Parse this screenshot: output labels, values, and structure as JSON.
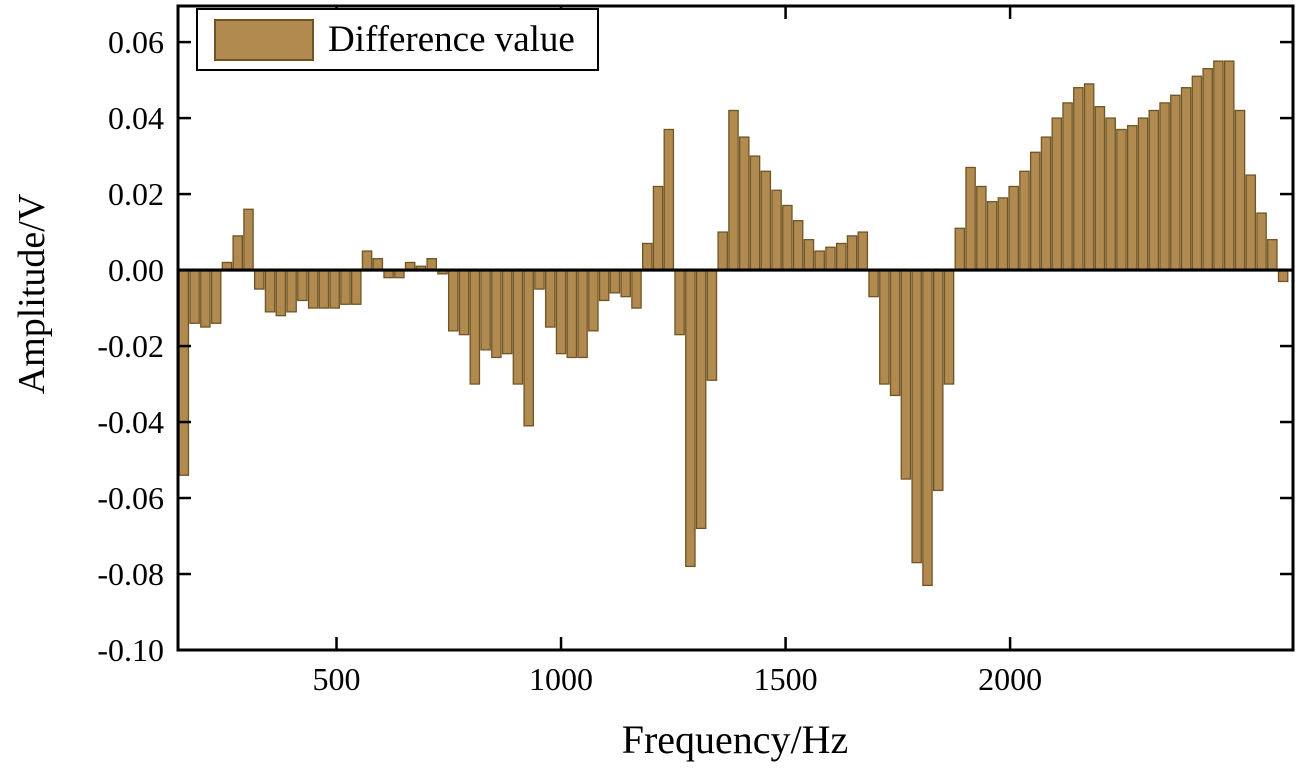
{
  "figure": {
    "background": "#ffffff"
  },
  "chart_data": {
    "type": "bar",
    "title": "",
    "xlabel": "Frequency/Hz",
    "ylabel": "Amplitude/V",
    "legend": [
      {
        "label": "Difference value",
        "color": "#b08a4f"
      }
    ],
    "legend_position": "top-left",
    "bar_color": "#b08a4f",
    "bar_edge_color": "#6f5526",
    "axis_color": "#000000",
    "zero_line": true,
    "grid": false,
    "xlim": [
      147,
      2630
    ],
    "ylim": [
      -0.1,
      0.0695
    ],
    "xticks": [
      500,
      1000,
      1500,
      2000
    ],
    "yticks": [
      0.06,
      0.04,
      0.02,
      0.0,
      -0.02,
      -0.04,
      -0.06,
      -0.08,
      -0.1
    ],
    "x_start": 160,
    "x_step": 24,
    "values": [
      -0.054,
      -0.014,
      -0.015,
      -0.014,
      0.002,
      0.009,
      0.016,
      -0.005,
      -0.011,
      -0.012,
      -0.011,
      -0.008,
      -0.01,
      -0.01,
      -0.01,
      -0.009,
      -0.009,
      0.005,
      0.003,
      -0.002,
      -0.002,
      0.002,
      0.001,
      0.003,
      -0.001,
      -0.016,
      -0.017,
      -0.03,
      -0.021,
      -0.023,
      -0.022,
      -0.03,
      -0.041,
      -0.005,
      -0.015,
      -0.022,
      -0.023,
      -0.023,
      -0.016,
      -0.008,
      -0.006,
      -0.007,
      -0.01,
      0.007,
      0.022,
      0.037,
      -0.017,
      -0.078,
      -0.068,
      -0.029,
      0.01,
      0.042,
      0.035,
      0.03,
      0.026,
      0.021,
      0.017,
      0.013,
      0.008,
      0.005,
      0.006,
      0.007,
      0.009,
      0.01,
      -0.007,
      -0.03,
      -0.033,
      -0.055,
      -0.077,
      -0.083,
      -0.058,
      -0.03,
      0.011,
      0.027,
      0.022,
      0.018,
      0.019,
      0.022,
      0.026,
      0.031,
      0.035,
      0.04,
      0.044,
      0.048,
      0.049,
      0.043,
      0.04,
      0.037,
      0.038,
      0.04,
      0.042,
      0.044,
      0.046,
      0.048,
      0.051,
      0.053,
      0.055,
      0.055,
      0.042,
      0.025,
      0.015,
      0.008,
      -0.003
    ]
  }
}
